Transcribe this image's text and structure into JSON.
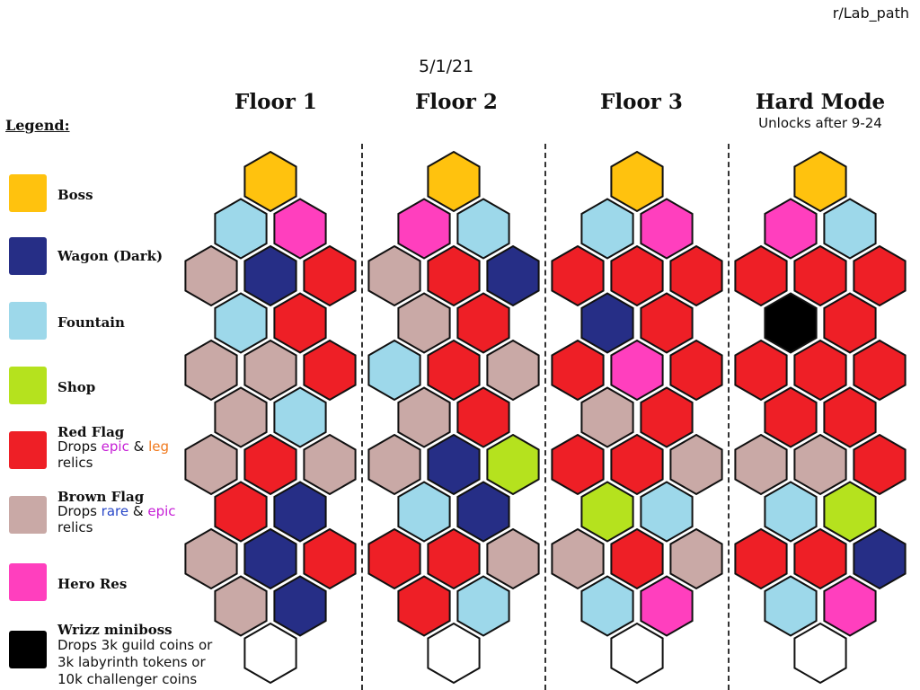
{
  "credit": "r/Lab_path",
  "date": "5/1/21",
  "colors": {
    "boss": "#FFC20E",
    "wagon": "#262E86",
    "fountain": "#9DD8EA",
    "shop": "#B5E21E",
    "red": "#EE1F26",
    "brown": "#C9A9A6",
    "hero": "#FF3FBE",
    "miniboss": "#000000",
    "empty": "#FFFFFF"
  },
  "legend": {
    "title": "Legend:",
    "items": [
      {
        "key": "boss",
        "label": "Boss",
        "desc_lines": []
      },
      {
        "key": "wagon",
        "label": "Wagon (Dark)",
        "desc_lines": []
      },
      {
        "key": "fountain",
        "label": "Fountain",
        "desc_lines": []
      },
      {
        "key": "shop",
        "label": "Shop",
        "desc_lines": []
      },
      {
        "key": "red",
        "label": "Red Flag",
        "desc_prefix": "Drops ",
        "desc_word1": "epic",
        "desc_mid": " & ",
        "desc_word2": "leg",
        "desc_line2": "relics"
      },
      {
        "key": "brown",
        "label": "Brown Flag",
        "desc_prefix": "Drops ",
        "desc_word1": "rare",
        "desc_mid": " & ",
        "desc_word2": "epic",
        "desc_line2": "relics"
      },
      {
        "key": "hero",
        "label": "Hero Res",
        "desc_lines": []
      },
      {
        "key": "miniboss",
        "label": "Wrizz miniboss",
        "desc_lines": [
          "Drops 3k guild coins or",
          "3k labyrinth tokens or",
          "10k challenger coins"
        ]
      }
    ],
    "word_colors": {
      "epic": "#C61ED6",
      "leg": "#F07A1E",
      "rare": "#2847C8"
    }
  },
  "floors": [
    {
      "title": "Floor 1",
      "subtitle": "",
      "rows": [
        [
          "boss"
        ],
        [
          "fountain",
          "hero"
        ],
        [
          "brown",
          "wagon",
          "red"
        ],
        [
          "fountain",
          "red"
        ],
        [
          "brown",
          "brown",
          "red"
        ],
        [
          "brown",
          "fountain"
        ],
        [
          "brown",
          "red",
          "brown"
        ],
        [
          "red",
          "wagon"
        ],
        [
          "brown",
          "wagon",
          "red"
        ],
        [
          "brown",
          "wagon"
        ],
        [
          "empty"
        ]
      ]
    },
    {
      "title": "Floor 2",
      "subtitle": "",
      "rows": [
        [
          "boss"
        ],
        [
          "hero",
          "fountain"
        ],
        [
          "brown",
          "red",
          "wagon"
        ],
        [
          "brown",
          "red"
        ],
        [
          "fountain",
          "red",
          "brown"
        ],
        [
          "brown",
          "red"
        ],
        [
          "brown",
          "wagon",
          "shop"
        ],
        [
          "fountain",
          "wagon"
        ],
        [
          "red",
          "red",
          "brown"
        ],
        [
          "red",
          "fountain"
        ],
        [
          "empty"
        ]
      ]
    },
    {
      "title": "Floor 3",
      "subtitle": "",
      "rows": [
        [
          "boss"
        ],
        [
          "fountain",
          "hero"
        ],
        [
          "red",
          "red",
          "red"
        ],
        [
          "wagon",
          "red"
        ],
        [
          "red",
          "hero",
          "red"
        ],
        [
          "brown",
          "red"
        ],
        [
          "red",
          "red",
          "brown"
        ],
        [
          "shop",
          "fountain"
        ],
        [
          "brown",
          "red",
          "brown"
        ],
        [
          "fountain",
          "hero"
        ],
        [
          "empty"
        ]
      ]
    },
    {
      "title": "Hard Mode",
      "subtitle": "Unlocks after 9-24",
      "rows": [
        [
          "boss"
        ],
        [
          "hero",
          "fountain"
        ],
        [
          "red",
          "red",
          "red"
        ],
        [
          "miniboss",
          "red"
        ],
        [
          "red",
          "red",
          "red"
        ],
        [
          "red",
          "red"
        ],
        [
          "brown",
          "brown",
          "red"
        ],
        [
          "fountain",
          "shop"
        ],
        [
          "red",
          "red",
          "wagon"
        ],
        [
          "fountain",
          "hero"
        ],
        [
          "empty"
        ]
      ]
    }
  ]
}
